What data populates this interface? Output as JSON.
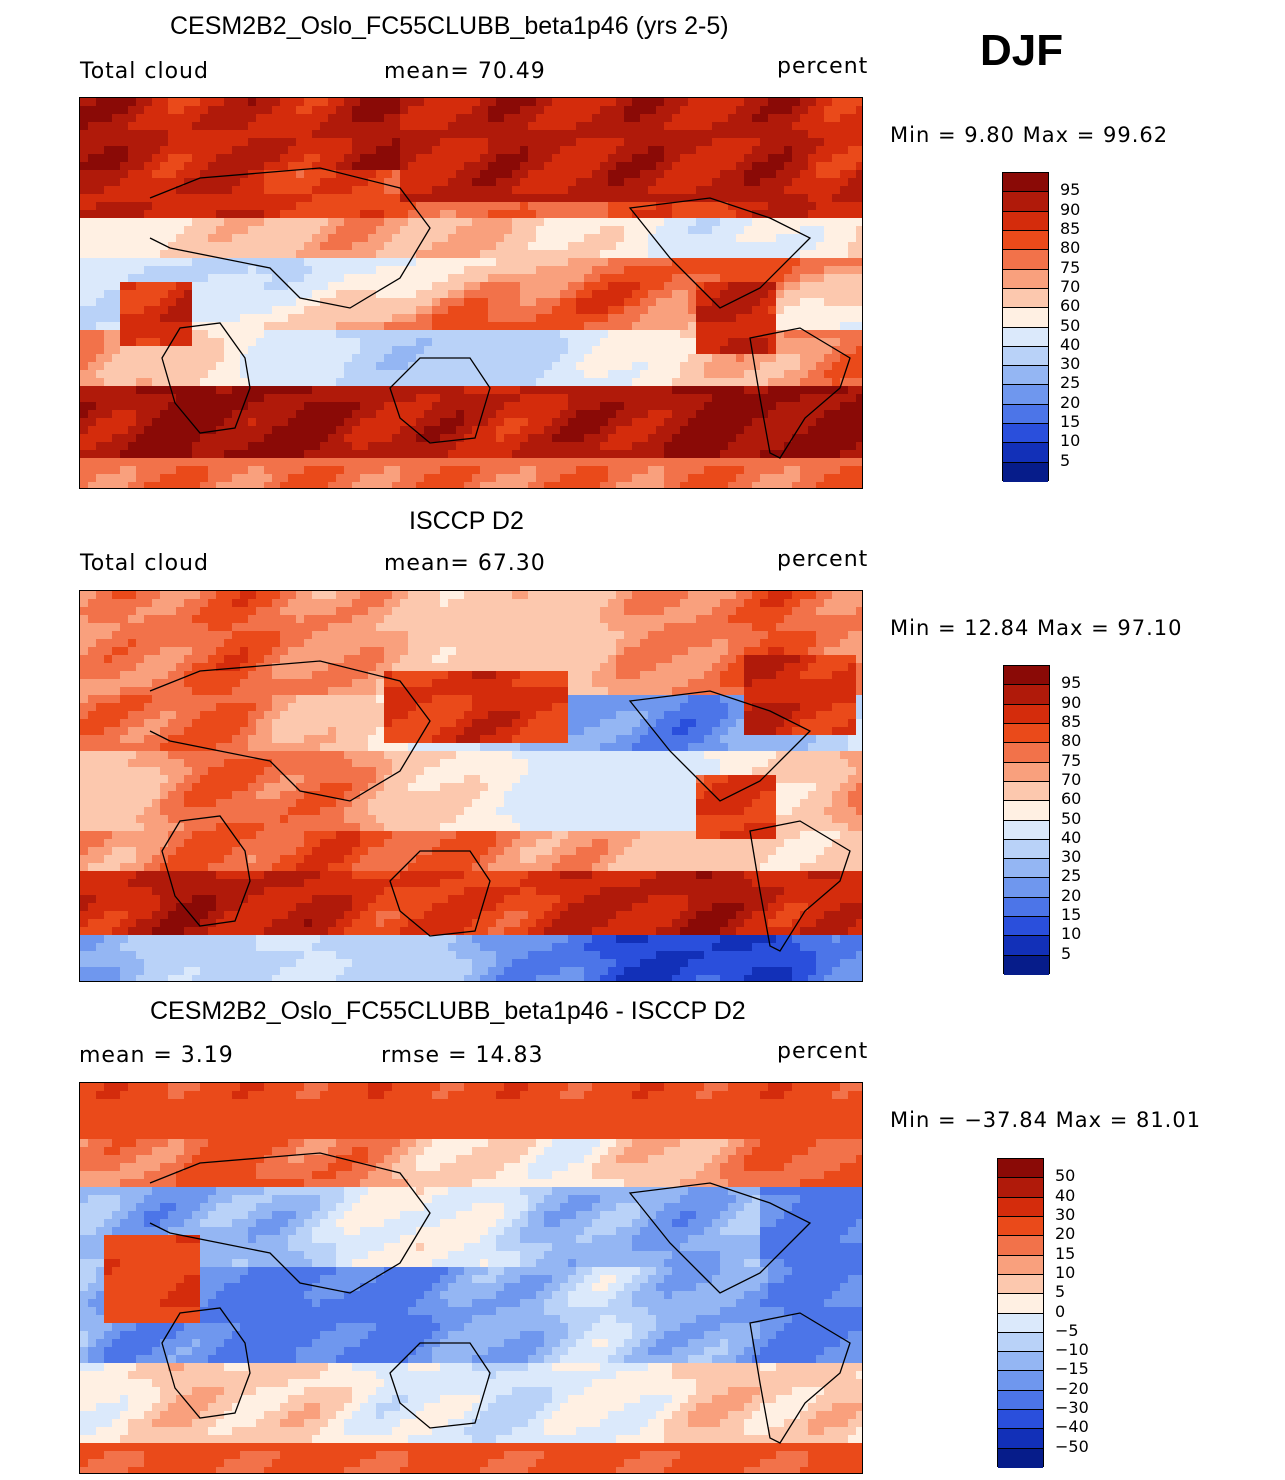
{
  "season": "DJF",
  "panels": [
    {
      "title": "CESM2B2_Oslo_FC55CLUBB_beta1p46 (yrs 2-5)",
      "left_label": "Total cloud",
      "mid_label": "mean=  70.49",
      "units": "percent",
      "minmax": "Min =   9.80 Max =  99.62",
      "colorbar": {
        "levels": [
          "95",
          "90",
          "85",
          "80",
          "75",
          "70",
          "60",
          "50",
          "40",
          "30",
          "25",
          "20",
          "15",
          "10",
          "5"
        ],
        "colors": [
          "#8a0a06",
          "#b01a0a",
          "#d42c0c",
          "#ea4a1a",
          "#f2724a",
          "#f9a07d",
          "#fcc8ae",
          "#fff0e3",
          "#dbe9fb",
          "#b9d2f8",
          "#94b6f3",
          "#6f97ee",
          "#4c75e8",
          "#2a4fdc",
          "#1230b8",
          "#061c8a"
        ],
        "start": 0
      }
    },
    {
      "title": "ISCCP D2",
      "left_label": "Total cloud",
      "mid_label": "mean=  67.30",
      "units": "percent",
      "minmax": "Min =  12.84 Max =  97.10",
      "colorbar": {
        "levels": [
          "95",
          "90",
          "85",
          "80",
          "75",
          "70",
          "60",
          "50",
          "40",
          "30",
          "25",
          "20",
          "15",
          "10",
          "5"
        ],
        "colors": [
          "#8a0a06",
          "#b01a0a",
          "#d42c0c",
          "#ea4a1a",
          "#f2724a",
          "#f9a07d",
          "#fcc8ae",
          "#fff0e3",
          "#dbe9fb",
          "#b9d2f8",
          "#94b6f3",
          "#6f97ee",
          "#4c75e8",
          "#2a4fdc",
          "#1230b8",
          "#061c8a"
        ],
        "start": 1
      }
    },
    {
      "title": "CESM2B2_Oslo_FC55CLUBB_beta1p46 - ISCCP D2",
      "left_label": "mean =   3.19",
      "mid_label": "rmse =  14.83",
      "units": "percent",
      "minmax": "Min = −37.84 Max =  81.01",
      "colorbar": {
        "levels": [
          "50",
          "40",
          "30",
          "20",
          "15",
          "10",
          "5",
          "0",
          "−5",
          "−10",
          "−15",
          "−20",
          "−30",
          "−40",
          "−50"
        ],
        "colors": [
          "#8a0a06",
          "#b01a0a",
          "#d42c0c",
          "#ea4a1a",
          "#f2724a",
          "#f9a07d",
          "#fcc8ae",
          "#fff0e3",
          "#dbe9fb",
          "#b9d2f8",
          "#94b6f3",
          "#6f97ee",
          "#4c75e8",
          "#2a4fdc",
          "#1230b8",
          "#061c8a"
        ],
        "start": 2
      }
    }
  ]
}
